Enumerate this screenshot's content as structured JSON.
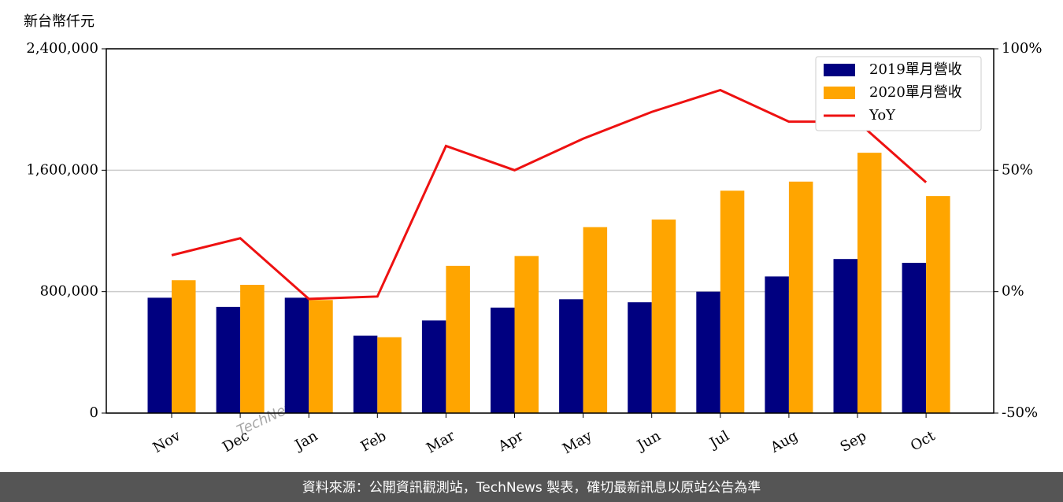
{
  "chart_data": {
    "type": "bar_line",
    "y_label": "新台幣仟元",
    "watermark": "TechNews",
    "footer": "資料來源：公開資訊觀測站，TechNews 製表，確切最新訊息以原站公告為準",
    "categories": [
      "Nov",
      "Dec",
      "Jan",
      "Feb",
      "Mar",
      "Apr",
      "May",
      "Jun",
      "Jul",
      "Aug",
      "Sep",
      "Oct"
    ],
    "series": [
      {
        "name": "2019單月營收",
        "color": "#000080",
        "type": "bar",
        "values": [
          760000,
          700000,
          760000,
          510000,
          610000,
          695000,
          750000,
          730000,
          800000,
          900000,
          1015000,
          990000
        ]
      },
      {
        "name": "2020單月營收",
        "color": "#ffa500",
        "type": "bar",
        "values": [
          875000,
          845000,
          745000,
          500000,
          970000,
          1035000,
          1225000,
          1275000,
          1465000,
          1525000,
          1715000,
          1430000
        ]
      },
      {
        "name": "YoY",
        "color": "#ee1111",
        "type": "line",
        "axis": "y2",
        "values": [
          15,
          22,
          -3,
          -2,
          60,
          50,
          63,
          74,
          83,
          70,
          70,
          45
        ]
      }
    ],
    "ylim": [
      0,
      2400000
    ],
    "yticks": [
      {
        "value": 0,
        "label": "0"
      },
      {
        "value": 800000,
        "label": "800,000"
      },
      {
        "value": 1600000,
        "label": "1,600,000"
      },
      {
        "value": 2400000,
        "label": "2,400,000"
      }
    ],
    "y2lim": [
      -50,
      100
    ],
    "y2ticks": [
      {
        "value": -50,
        "label": "-50%"
      },
      {
        "value": 0,
        "label": "0%"
      },
      {
        "value": 50,
        "label": "50%"
      },
      {
        "value": 100,
        "label": "100%"
      }
    ],
    "grid": true,
    "legend": "upper right"
  }
}
